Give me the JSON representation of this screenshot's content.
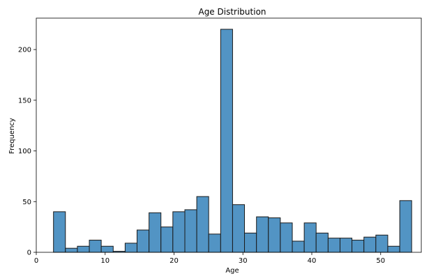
{
  "chart_data": {
    "type": "bar",
    "title": "Age Distribution",
    "xlabel": "Age",
    "ylabel": "Frequency",
    "xlim": [
      0,
      56
    ],
    "ylim": [
      0,
      231
    ],
    "xticks": [
      0,
      10,
      20,
      30,
      40,
      50
    ],
    "yticks": [
      0,
      50,
      100,
      150,
      200
    ],
    "grid": false,
    "bar_color": "#5294c4",
    "edge_color": "#1a1a1a",
    "bins": [
      {
        "x0": 2.5,
        "x1": 4.23,
        "count": 40
      },
      {
        "x0": 4.23,
        "x1": 5.97,
        "count": 4
      },
      {
        "x0": 5.97,
        "x1": 7.7,
        "count": 6
      },
      {
        "x0": 7.7,
        "x1": 9.43,
        "count": 12
      },
      {
        "x0": 9.43,
        "x1": 11.17,
        "count": 6
      },
      {
        "x0": 11.17,
        "x1": 12.9,
        "count": 1
      },
      {
        "x0": 12.9,
        "x1": 14.63,
        "count": 9
      },
      {
        "x0": 14.63,
        "x1": 16.37,
        "count": 22
      },
      {
        "x0": 16.37,
        "x1": 18.1,
        "count": 39
      },
      {
        "x0": 18.1,
        "x1": 19.83,
        "count": 25
      },
      {
        "x0": 19.83,
        "x1": 21.57,
        "count": 40
      },
      {
        "x0": 21.57,
        "x1": 23.3,
        "count": 42
      },
      {
        "x0": 23.3,
        "x1": 25.03,
        "count": 55
      },
      {
        "x0": 25.03,
        "x1": 26.77,
        "count": 18
      },
      {
        "x0": 26.77,
        "x1": 28.5,
        "count": 220
      },
      {
        "x0": 28.5,
        "x1": 30.23,
        "count": 47
      },
      {
        "x0": 30.23,
        "x1": 31.97,
        "count": 19
      },
      {
        "x0": 31.97,
        "x1": 33.7,
        "count": 35
      },
      {
        "x0": 33.7,
        "x1": 35.43,
        "count": 34
      },
      {
        "x0": 35.43,
        "x1": 37.17,
        "count": 29
      },
      {
        "x0": 37.17,
        "x1": 38.9,
        "count": 11
      },
      {
        "x0": 38.9,
        "x1": 40.63,
        "count": 29
      },
      {
        "x0": 40.63,
        "x1": 42.37,
        "count": 19
      },
      {
        "x0": 42.37,
        "x1": 44.1,
        "count": 14
      },
      {
        "x0": 44.1,
        "x1": 45.83,
        "count": 14
      },
      {
        "x0": 45.83,
        "x1": 47.57,
        "count": 12
      },
      {
        "x0": 47.57,
        "x1": 49.3,
        "count": 15
      },
      {
        "x0": 49.3,
        "x1": 51.03,
        "count": 17
      },
      {
        "x0": 51.03,
        "x1": 52.77,
        "count": 6
      },
      {
        "x0": 52.77,
        "x1": 54.5,
        "count": 51
      }
    ]
  }
}
